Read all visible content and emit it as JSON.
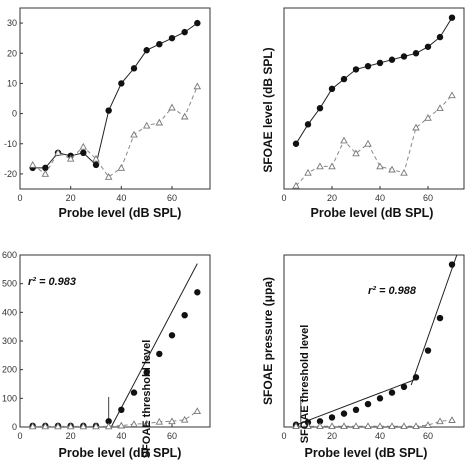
{
  "chart_data": [
    {
      "type": "line",
      "xlabel": "Probe level (dB SPL)",
      "ylabel": "",
      "xlim": [
        0,
        75
      ],
      "ylim": [
        -25,
        35
      ],
      "xticks": [
        0,
        20,
        40,
        60
      ],
      "yticks": [
        -20,
        -10,
        0,
        10,
        20,
        30
      ],
      "grid": false,
      "series": [
        {
          "marker": "filled-circle",
          "line": "solid",
          "x": [
            5,
            10,
            15,
            20,
            25,
            30,
            35,
            40,
            45,
            50,
            55,
            60,
            65,
            70
          ],
          "y": [
            -18,
            -18,
            -13,
            -14,
            -13,
            -17,
            1,
            10,
            15,
            21,
            23,
            25,
            27,
            30
          ]
        },
        {
          "marker": "open-triangle",
          "line": "dashed",
          "x": [
            5,
            10,
            15,
            20,
            25,
            30,
            35,
            40,
            45,
            50,
            55,
            60,
            65,
            70
          ],
          "y": [
            -17,
            -20,
            -13,
            -15,
            -11,
            -15,
            -21,
            -18,
            -7,
            -4,
            -3,
            2,
            -1,
            9
          ]
        }
      ]
    },
    {
      "type": "line",
      "xlabel": "Probe level (dB SPL)",
      "ylabel": "SFOAE level (dB SPL)",
      "xlim": [
        0,
        75
      ],
      "ylim": [
        -26,
        30
      ],
      "xticks": [
        0,
        20,
        40,
        60
      ],
      "yticks": [],
      "grid": false,
      "series": [
        {
          "marker": "filled-circle",
          "line": "solid",
          "x": [
            5,
            10,
            15,
            20,
            25,
            30,
            35,
            40,
            45,
            50,
            55,
            60,
            65,
            70
          ],
          "y": [
            -12,
            -6,
            -1,
            5,
            8,
            11,
            12,
            13,
            14,
            15,
            16,
            18,
            21,
            27
          ]
        },
        {
          "marker": "open-triangle",
          "line": "dashed",
          "x": [
            5,
            10,
            15,
            20,
            25,
            30,
            35,
            40,
            45,
            50,
            55,
            60,
            65,
            70
          ],
          "y": [
            -25,
            -21,
            -19,
            -19,
            -11,
            -15,
            -12,
            -19,
            -20,
            -21,
            -7,
            -4,
            -1,
            3
          ]
        }
      ]
    },
    {
      "type": "scatter",
      "xlabel": "Probe level (dB SPL)",
      "ylabel": "",
      "xlim": [
        0,
        75
      ],
      "ylim": [
        0,
        600
      ],
      "xticks": [
        0,
        20,
        40,
        60
      ],
      "yticks": [
        0,
        100,
        200,
        300,
        400,
        500,
        600
      ],
      "ytick_labels": [
        "0",
        "100",
        "200",
        "300",
        "400",
        "500",
        "600"
      ],
      "grid": false,
      "r2_label": "r² = 0.983",
      "annotation": "SFOAE threshold level",
      "threshold_x": 35,
      "fit_line": {
        "x": [
          36,
          70
        ],
        "y": [
          0,
          570
        ]
      },
      "series": [
        {
          "marker": "filled-circle",
          "x": [
            5,
            10,
            15,
            20,
            25,
            30,
            35,
            40,
            45,
            50,
            55,
            60,
            65,
            70
          ],
          "y": [
            4,
            4,
            4,
            4,
            4,
            4,
            20,
            60,
            120,
            190,
            255,
            320,
            390,
            470
          ]
        },
        {
          "marker": "open-triangle",
          "line": "dashed",
          "x": [
            5,
            10,
            15,
            20,
            25,
            30,
            35,
            40,
            45,
            50,
            55,
            60,
            65,
            70
          ],
          "y": [
            2,
            2,
            2,
            2,
            2,
            2,
            2,
            5,
            10,
            12,
            18,
            20,
            25,
            55
          ]
        }
      ]
    },
    {
      "type": "scatter",
      "xlabel": "Probe level (dB SPL)",
      "ylabel": "SFOAE pressure (μpa)",
      "xlim": [
        0,
        75
      ],
      "ylim": [
        0,
        450
      ],
      "xticks": [
        0,
        20,
        40,
        60
      ],
      "yticks": [],
      "grid": false,
      "r2_label": "r² = 0.988",
      "annotation": "SFOAE threshold level",
      "threshold_x": 7,
      "fit_lines": [
        {
          "x": [
            5,
            55
          ],
          "y": [
            5,
            125
          ]
        },
        {
          "x": [
            53,
            72
          ],
          "y": [
            110,
            450
          ]
        }
      ],
      "series": [
        {
          "marker": "filled-circle",
          "x": [
            5,
            10,
            15,
            20,
            25,
            30,
            35,
            40,
            45,
            50,
            55,
            60,
            65,
            70
          ],
          "y": [
            6,
            12,
            15,
            25,
            35,
            45,
            60,
            75,
            90,
            105,
            130,
            200,
            285,
            425
          ]
        },
        {
          "marker": "open-triangle",
          "line": "dashed",
          "x": [
            5,
            10,
            15,
            20,
            25,
            30,
            35,
            40,
            45,
            50,
            55,
            60,
            65,
            70
          ],
          "y": [
            2,
            2,
            2,
            2,
            2,
            2,
            2,
            2,
            2,
            2,
            2,
            5,
            15,
            18
          ]
        }
      ]
    }
  ]
}
